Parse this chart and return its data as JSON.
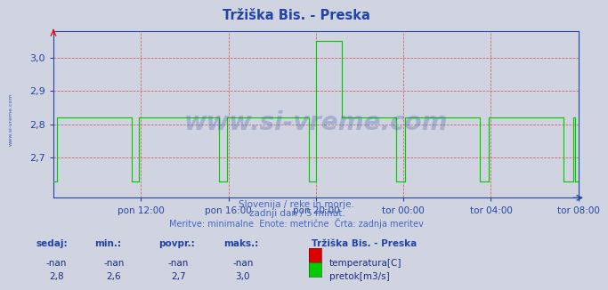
{
  "title": "Tržiška Bis. - Preska",
  "title_color": "#2244aa",
  "bg_color": "#d0d4e0",
  "plot_bg_color": "#d0d4e0",
  "ylim": [
    2.58,
    3.08
  ],
  "yticks": [
    2.7,
    2.8,
    2.9,
    3.0
  ],
  "xlim": [
    0,
    288
  ],
  "xtick_labels": [
    "pon 12:00",
    "pon 16:00",
    "pon 20:00",
    "tor 00:00",
    "tor 04:00",
    "tor 08:00"
  ],
  "xtick_positions": [
    48,
    96,
    144,
    192,
    240,
    288
  ],
  "flow_color": "#00cc00",
  "temp_color": "#dd0000",
  "watermark": "www.si-vreme.com",
  "watermark_color": "#3355aa",
  "watermark_alpha": 0.28,
  "subtitle1": "Slovenija / reke in morje.",
  "subtitle2": "zadnji dan / 5 minut.",
  "subtitle3": "Meritve: minimalne  Enote: metrične  Črta: zadnja meritev",
  "subtitle_color": "#4466cc",
  "table_headers": [
    "sedaj:",
    "min.:",
    "povpr.:",
    "maks.:"
  ],
  "table_row1": [
    "-nan",
    "-nan",
    "-nan",
    "-nan"
  ],
  "table_row2": [
    "2,8",
    "2,6",
    "2,7",
    "3,0"
  ],
  "station_label": "Tržiška Bis. - Preska",
  "legend_temp": "temperatura[C]",
  "legend_flow": "pretok[m3/s]",
  "axis_color": "#2244aa",
  "grid_color": "#cc4444",
  "spine_color": "#2244aa",
  "left_watermark": "www.si-vreme.com"
}
